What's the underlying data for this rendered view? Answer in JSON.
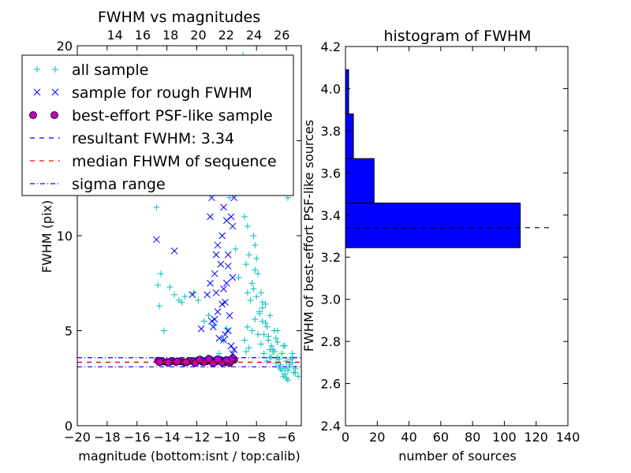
{
  "chart_data": [
    {
      "type": "scatter",
      "title": "FWHM vs magnitudes",
      "xlabel": "magnitude (bottom:isnt / top:calib)",
      "ylabel": "FWHM (pix)",
      "xlim": [
        -20,
        -5
      ],
      "ylim": [
        0,
        20
      ],
      "top_xlim": [
        11.3,
        27.4
      ],
      "x_ticks": [
        -20,
        -18,
        -16,
        -14,
        -12,
        -10,
        -8,
        -6
      ],
      "x_tick_labels": [
        "−20",
        "−18",
        "−16",
        "−14",
        "−12",
        "−10",
        "−8",
        "−6"
      ],
      "y_ticks": [
        0,
        5,
        10,
        15,
        20
      ],
      "y_tick_labels": [
        "0",
        "5",
        "10",
        "15",
        "20"
      ],
      "top_x_ticks": [
        14,
        16,
        18,
        20,
        22,
        24,
        26
      ],
      "top_x_tick_labels": [
        "14",
        "16",
        "18",
        "20",
        "22",
        "24",
        "26"
      ],
      "legend_position": "upper-left",
      "series": [
        {
          "name": "all sample",
          "marker": "+",
          "color": "#00bfbf",
          "x": [
            -14.7,
            -14.6,
            -14.5,
            -14.2,
            -14.4,
            -13.8,
            -13.5,
            -13.2,
            -13.0,
            -12.8,
            -12.2,
            -11.9,
            -11.5,
            -11.2,
            -10.8,
            -10.5,
            -10.2,
            -10.0,
            -9.8,
            -9.6,
            -9.4,
            -9.2,
            -9.0,
            -8.9,
            -8.8,
            -8.7,
            -8.6,
            -8.5,
            -8.4,
            -8.3,
            -8.2,
            -8.1,
            -8.0,
            -7.9,
            -7.8,
            -7.7,
            -7.6,
            -7.5,
            -7.4,
            -7.3,
            -7.2,
            -7.1,
            -7.0,
            -6.9,
            -6.8,
            -6.7,
            -6.6,
            -6.5,
            -6.4,
            -6.3,
            -6.2,
            -6.1,
            -6.0,
            -5.9,
            -5.8,
            -5.6,
            -5.4,
            -5.2,
            -8.8,
            -8.6,
            -8.4,
            -8.2,
            -8.0,
            -7.8,
            -7.6,
            -7.4,
            -7.2,
            -7.0,
            -6.8,
            -6.6,
            -6.4,
            -6.2,
            -6.0,
            -5.8,
            -5.6,
            -5.4,
            -8.7,
            -8.5,
            -8.3,
            -8.1,
            -7.9,
            -7.7,
            -7.5,
            -7.3,
            -7.1,
            -6.9,
            -6.7,
            -6.5,
            -6.3,
            -6.1,
            -5.9,
            -5.7,
            -5.5,
            -8.9,
            -8.4,
            -7.9,
            -7.4,
            -6.9,
            -6.4,
            -5.9,
            -8.6,
            -8.1,
            -7.6,
            -7.1,
            -6.6,
            -6.1,
            -5.6
          ],
          "y": [
            11.5,
            7.4,
            6.3,
            5.0,
            8.0,
            7.3,
            6.9,
            6.6,
            6.5,
            6.8,
            7.0,
            6.6,
            5.5,
            5.8,
            5.3,
            3.8,
            4.5,
            5.1,
            12.0,
            14.5,
            9.3,
            7.8,
            12.5,
            15.0,
            11.0,
            8.5,
            10.5,
            9.0,
            13.5,
            7.5,
            10.0,
            9.5,
            8.8,
            8.0,
            6.0,
            7.0,
            5.5,
            4.8,
            6.4,
            5.2,
            4.5,
            4.0,
            4.2,
            3.9,
            5.0,
            4.6,
            3.6,
            3.5,
            3.2,
            3.8,
            4.2,
            3.0,
            3.4,
            2.9,
            3.1,
            3.3,
            2.8,
            2.6,
            4.5,
            5.2,
            6.6,
            7.2,
            6.8,
            5.9,
            6.2,
            5.4,
            4.7,
            3.6,
            3.9,
            4.4,
            3.0,
            2.6,
            2.5,
            3.2,
            3.6,
            3.0,
            3.9,
            4.1,
            5.0,
            5.6,
            4.8,
            4.3,
            3.8,
            3.4,
            3.6,
            4.0,
            3.3,
            3.1,
            2.9,
            2.7,
            2.4,
            3.5,
            2.8,
            19.5,
            17.0,
            19.0,
            15.0,
            13.0,
            12.5,
            12.0,
            7.0,
            8.2,
            6.5,
            5.8,
            5.0,
            4.2,
            3.8
          ]
        },
        {
          "name": "sample for rough FWHM",
          "marker": "x",
          "color": "#0000ff",
          "x": [
            -14.7,
            -13.5,
            -12.3,
            -11.7,
            -11.3,
            -11.1,
            -11.0,
            -10.9,
            -10.7,
            -10.6,
            -10.5,
            -10.4,
            -10.3,
            -10.2,
            -10.1,
            -10.0,
            -9.9,
            -9.8,
            -9.7,
            -9.6,
            -9.5,
            -9.4,
            -11.0,
            -10.8,
            -10.6,
            -10.4,
            -10.2,
            -10.0,
            -9.8,
            -9.6,
            -9.5,
            -10.9,
            -10.7,
            -10.3,
            -10.1,
            -9.9,
            -9.7,
            -11.1,
            -10.8,
            -10.5,
            -10.2,
            -9.9,
            -9.6
          ],
          "y": [
            9.8,
            9.2,
            6.9,
            5.1,
            6.9,
            11.0,
            12.0,
            14.0,
            7.0,
            9.5,
            12.5,
            8.5,
            10.0,
            11.5,
            6.5,
            7.5,
            9.0,
            13.0,
            11.0,
            10.5,
            4.0,
            14.5,
            5.5,
            8.0,
            6.0,
            13.2,
            4.5,
            10.8,
            5.8,
            7.8,
            12.0,
            5.2,
            9.0,
            6.4,
            4.8,
            8.4,
            4.2,
            7.5,
            5.6,
            4.6,
            7.2,
            5.0,
            3.8
          ]
        },
        {
          "name": "best-effort PSF-like sample",
          "marker": "o",
          "color": "#bf00bf",
          "x": [
            -14.6,
            -14.3,
            -14.0,
            -13.7,
            -13.4,
            -13.1,
            -12.8,
            -12.5,
            -12.2,
            -11.9,
            -11.6,
            -11.3,
            -11.0,
            -10.7,
            -10.4,
            -10.1,
            -9.8,
            -9.5,
            -14.5,
            -13.9,
            -13.3,
            -12.7,
            -12.1,
            -11.5,
            -10.9,
            -10.3,
            -9.7,
            -11.8,
            -11.2,
            -10.6,
            -10.0,
            -9.6
          ],
          "y": [
            3.42,
            3.38,
            3.35,
            3.4,
            3.36,
            3.39,
            3.33,
            3.41,
            3.37,
            3.44,
            3.36,
            3.4,
            3.43,
            3.38,
            3.45,
            3.35,
            3.3,
            3.47,
            3.35,
            3.32,
            3.38,
            3.34,
            3.3,
            3.36,
            3.29,
            3.33,
            3.4,
            3.48,
            3.52,
            3.5,
            3.46,
            3.55
          ]
        }
      ],
      "hlines": [
        {
          "name": "resultant FWHM: 3.34",
          "y": 3.34,
          "style": "dashed",
          "color": "#0000ff"
        },
        {
          "name": "median FHWM of sequence",
          "y": 3.34,
          "style": "dashed",
          "color": "#ff0000"
        },
        {
          "name": "sigma range",
          "y": 3.58,
          "style": "dashdot",
          "color": "#0000ff"
        },
        {
          "name": "",
          "y": 3.1,
          "style": "dashdot",
          "color": "#0000ff"
        }
      ]
    },
    {
      "type": "bar",
      "orientation": "horizontal",
      "title": "histogram of FWHM",
      "xlabel": "number of sources",
      "ylabel": "FWHM of best-effort PSF-like sources",
      "xlim": [
        0,
        140
      ],
      "ylim": [
        2.4,
        4.2
      ],
      "x_ticks": [
        0,
        20,
        40,
        60,
        80,
        100,
        120,
        140
      ],
      "x_tick_labels": [
        "0",
        "20",
        "40",
        "60",
        "80",
        "100",
        "120",
        "140"
      ],
      "y_ticks": [
        2.4,
        2.6,
        2.8,
        3.0,
        3.2,
        3.4,
        3.6,
        3.8,
        4.0,
        4.2
      ],
      "y_tick_labels": [
        "2.4",
        "2.6",
        "2.8",
        "3.0",
        "3.2",
        "3.4",
        "3.6",
        "3.8",
        "4.0",
        "4.2"
      ],
      "bins": [
        {
          "y0": 3.245,
          "y1": 3.457,
          "count": 110
        },
        {
          "y0": 3.457,
          "y1": 3.668,
          "count": 18
        },
        {
          "y0": 3.668,
          "y1": 3.88,
          "count": 5
        },
        {
          "y0": 3.88,
          "y1": 4.09,
          "count": 2
        }
      ],
      "bar_color": "#0000ff",
      "hline": {
        "y": 3.34,
        "xmax": 130,
        "style": "dashed",
        "color": "#000000"
      }
    }
  ]
}
